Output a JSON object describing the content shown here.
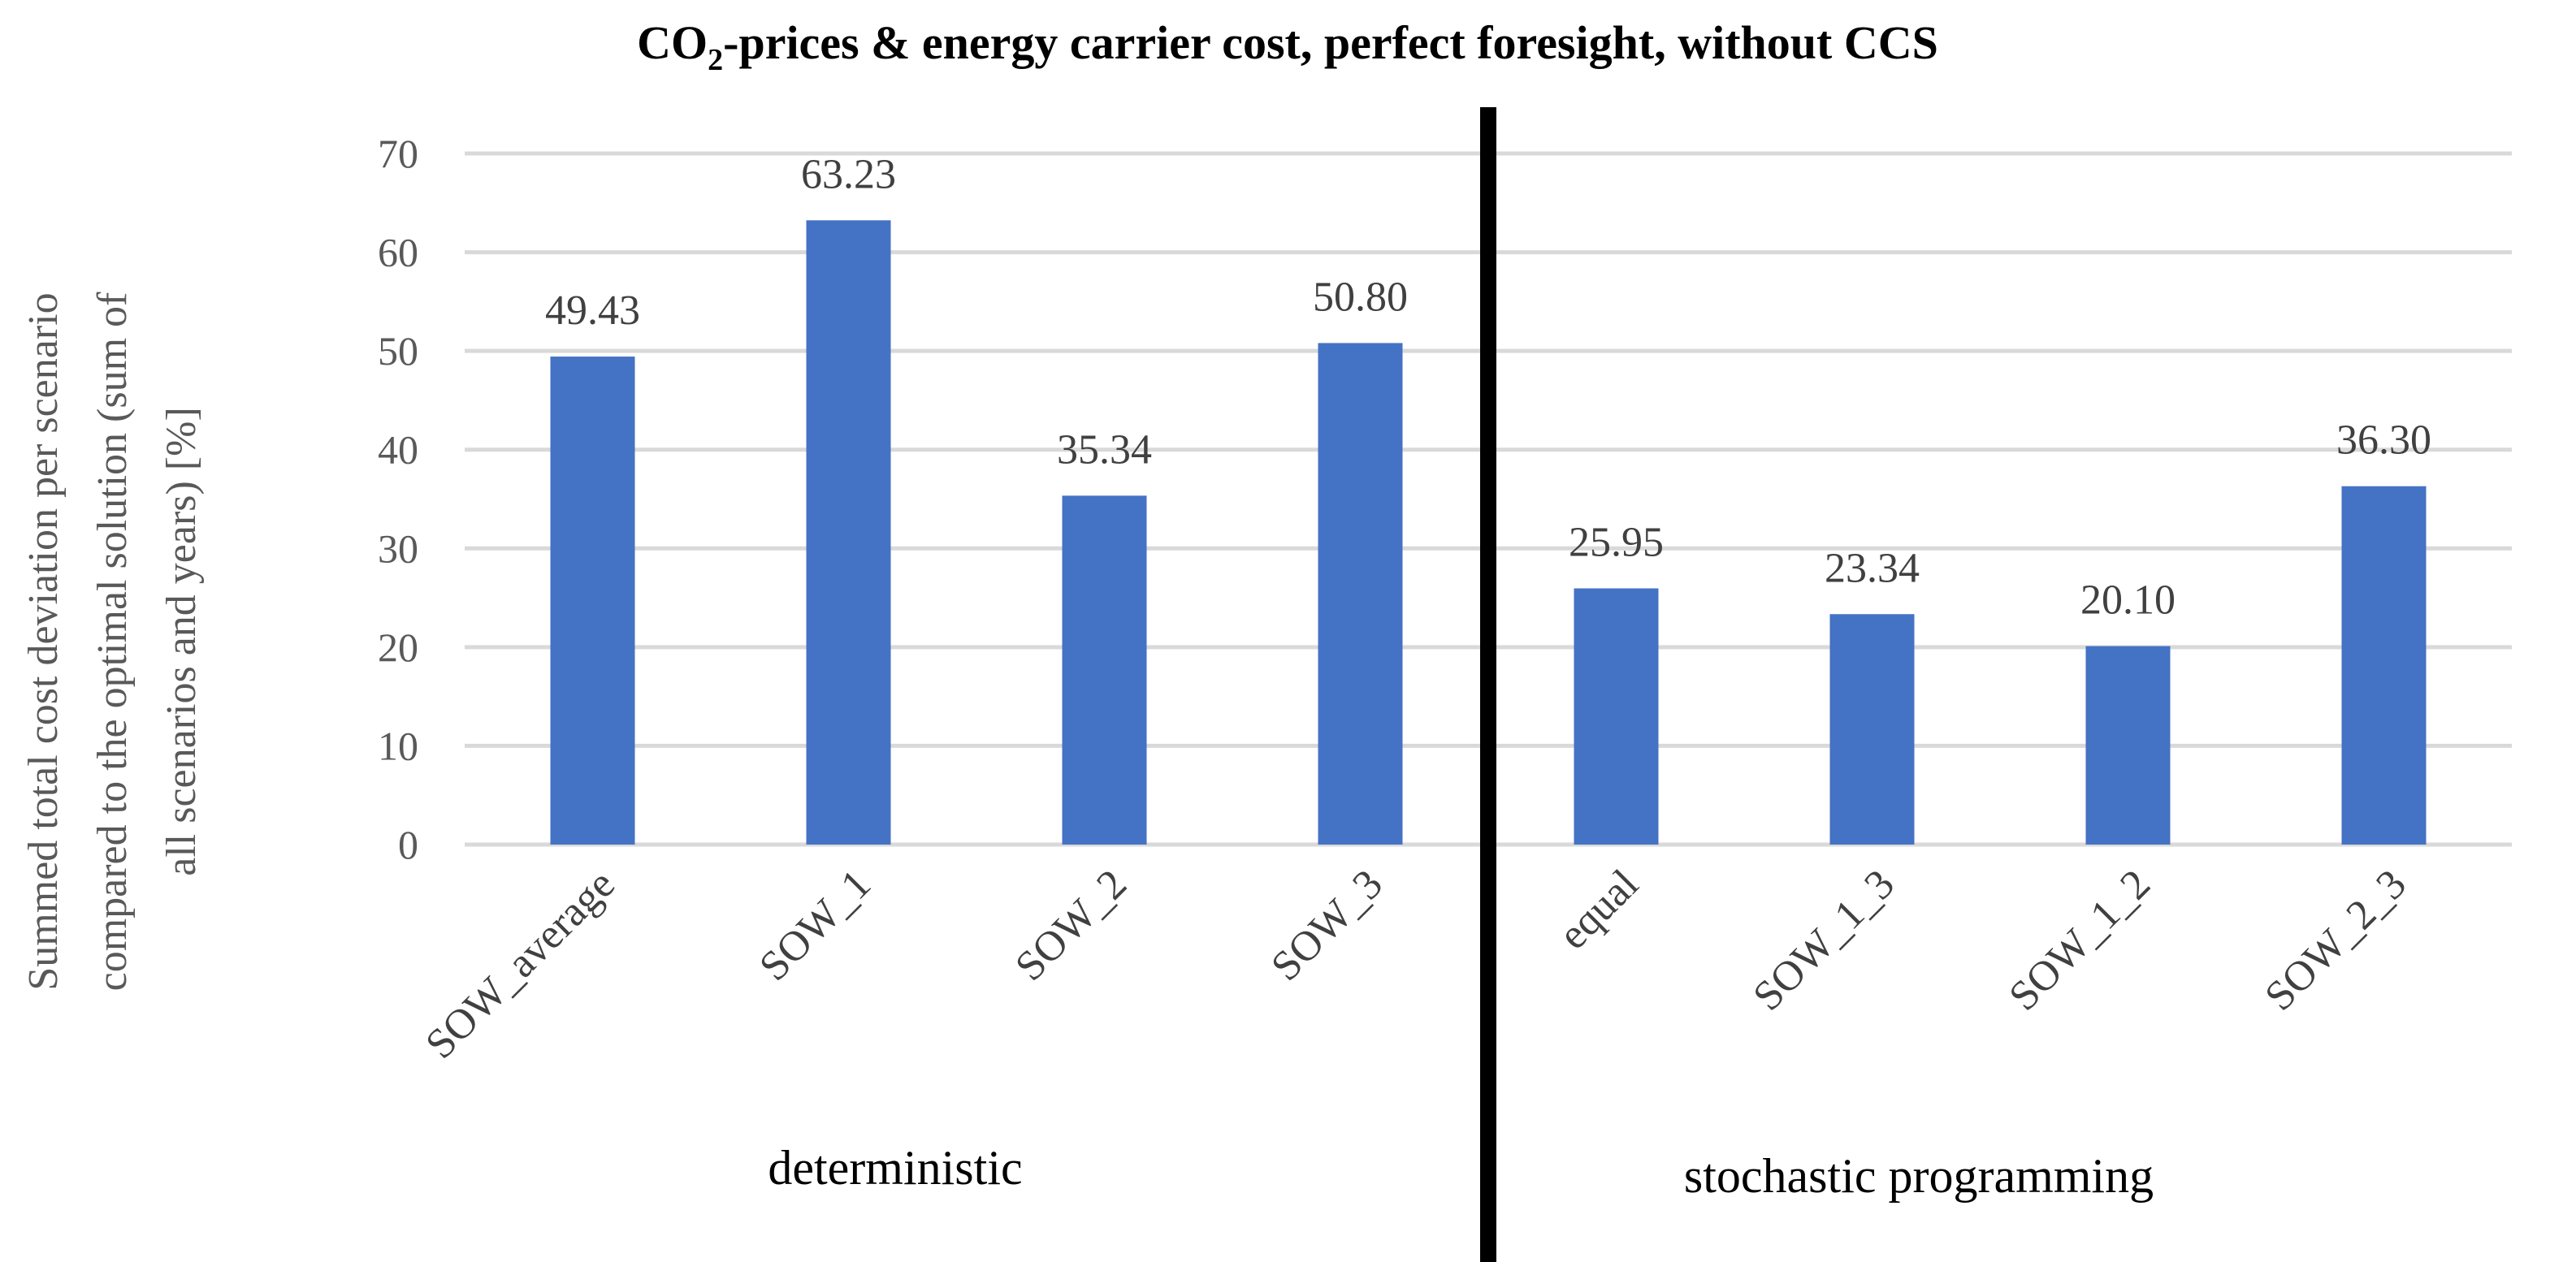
{
  "chart_data": {
    "type": "bar",
    "title_prefix": "CO",
    "title_subscript": "2",
    "title_suffix": "-prices & energy carrier cost, perfect foresight, without CCS",
    "ylabel_lines": [
      "Summed total cost deviation per scenario",
      "compared to the optimal solution (sum of",
      "all scenarios and years) [%]"
    ],
    "xlabel": "",
    "ylim": [
      0,
      70
    ],
    "yticks": [
      0,
      10,
      20,
      30,
      40,
      50,
      60,
      70
    ],
    "grid": true,
    "categories": [
      "SOW_average",
      "SOW_1",
      "SOW_2",
      "SOW_3",
      "equal",
      "SOW_1_3",
      "SOW_1_2",
      "SOW_2_3"
    ],
    "values": [
      49.43,
      63.23,
      35.34,
      50.8,
      25.95,
      23.34,
      20.1,
      36.3
    ],
    "data_labels": [
      "49.43",
      "63.23",
      "35.34",
      "50.80",
      "25.95",
      "23.34",
      "20.10",
      "36.30"
    ],
    "groups": [
      {
        "label": "deterministic",
        "categories": [
          "SOW_average",
          "SOW_1",
          "SOW_2",
          "SOW_3"
        ]
      },
      {
        "label": "stochastic programming",
        "categories": [
          "equal",
          "SOW_1_3",
          "SOW_1_2",
          "SOW_2_3"
        ]
      }
    ],
    "colors": {
      "bar": "#4472c4",
      "grid": "#d9d9d9",
      "divider": "#000000",
      "text": "#404040",
      "title": "#000000"
    }
  }
}
